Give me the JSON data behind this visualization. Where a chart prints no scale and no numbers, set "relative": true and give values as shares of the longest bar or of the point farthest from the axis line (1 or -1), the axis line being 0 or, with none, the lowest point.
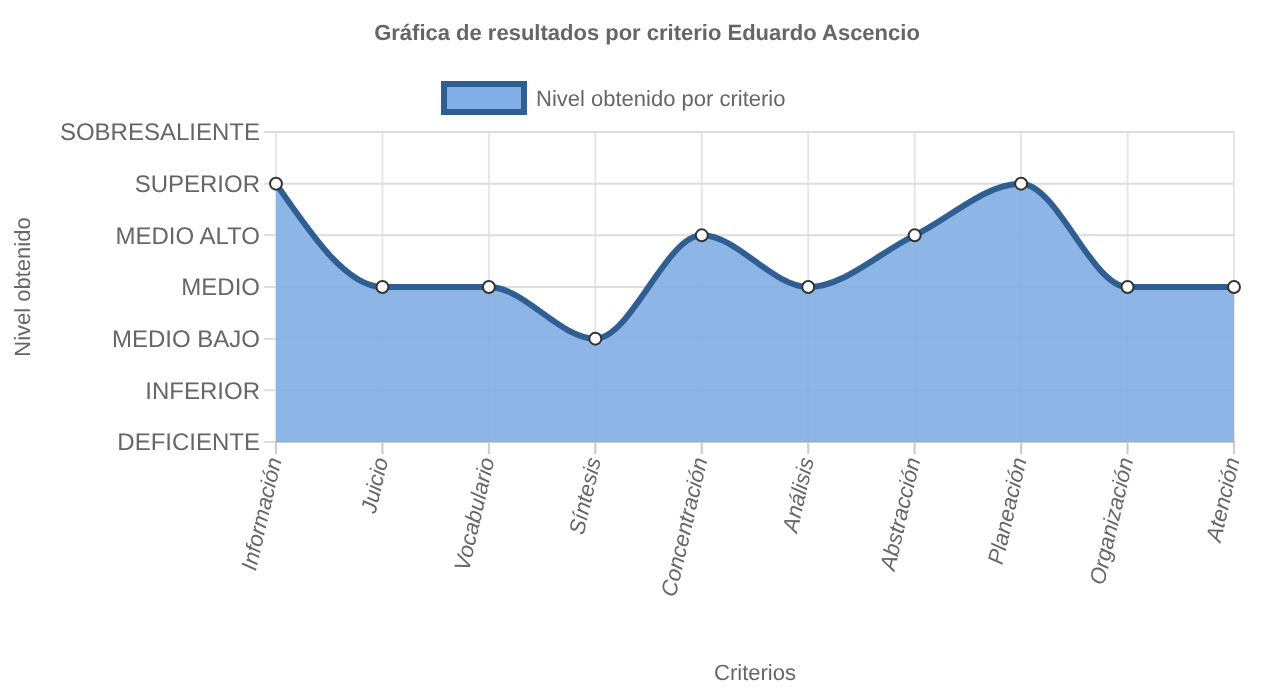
{
  "chart_data": {
    "type": "area",
    "title": "Gráfica de resultados por criterio Eduardo Ascencio",
    "xlabel": "Criterios",
    "annotations": [
      "Nivel obtenido"
    ],
    "categories": [
      "Información",
      "Juicio",
      "Vocabulario",
      "Síntesis",
      "Concentración",
      "Análisis",
      "Abstracción",
      "Planeación",
      "Organización",
      "Atención"
    ],
    "series": [
      {
        "name": "Nivel obtenido por criterio",
        "color": "#2f5f92",
        "values": [
          1,
          0.6,
          0.6,
          0.4,
          0.8,
          0.6,
          0.8,
          1,
          0.6,
          0.6
        ]
      }
    ],
    "relative": true,
    "ref_lines": [
      {
        "axis": "y",
        "value": 0,
        "label": "DEFICIENTE",
        "color": "#dddddd"
      },
      {
        "axis": "y",
        "value": 0.2,
        "label": "INFERIOR",
        "color": "#dddddd"
      },
      {
        "axis": "y",
        "value": 0.4,
        "label": "MEDIO BAJO",
        "color": "#dddddd"
      },
      {
        "axis": "y",
        "value": 0.6,
        "label": "MEDIO",
        "color": "#dddddd"
      },
      {
        "axis": "y",
        "value": 0.8,
        "label": "MEDIO ALTO",
        "color": "#dddddd"
      },
      {
        "axis": "y",
        "value": 1,
        "label": "SUPERIOR",
        "color": "#dddddd"
      },
      {
        "axis": "y",
        "value": 1.2,
        "label": "SOBRESALIENTE",
        "color": "#dddddd"
      }
    ],
    "grid": "x",
    "legend": "top",
    "marker": "circle",
    "line_style": "solid"
  }
}
